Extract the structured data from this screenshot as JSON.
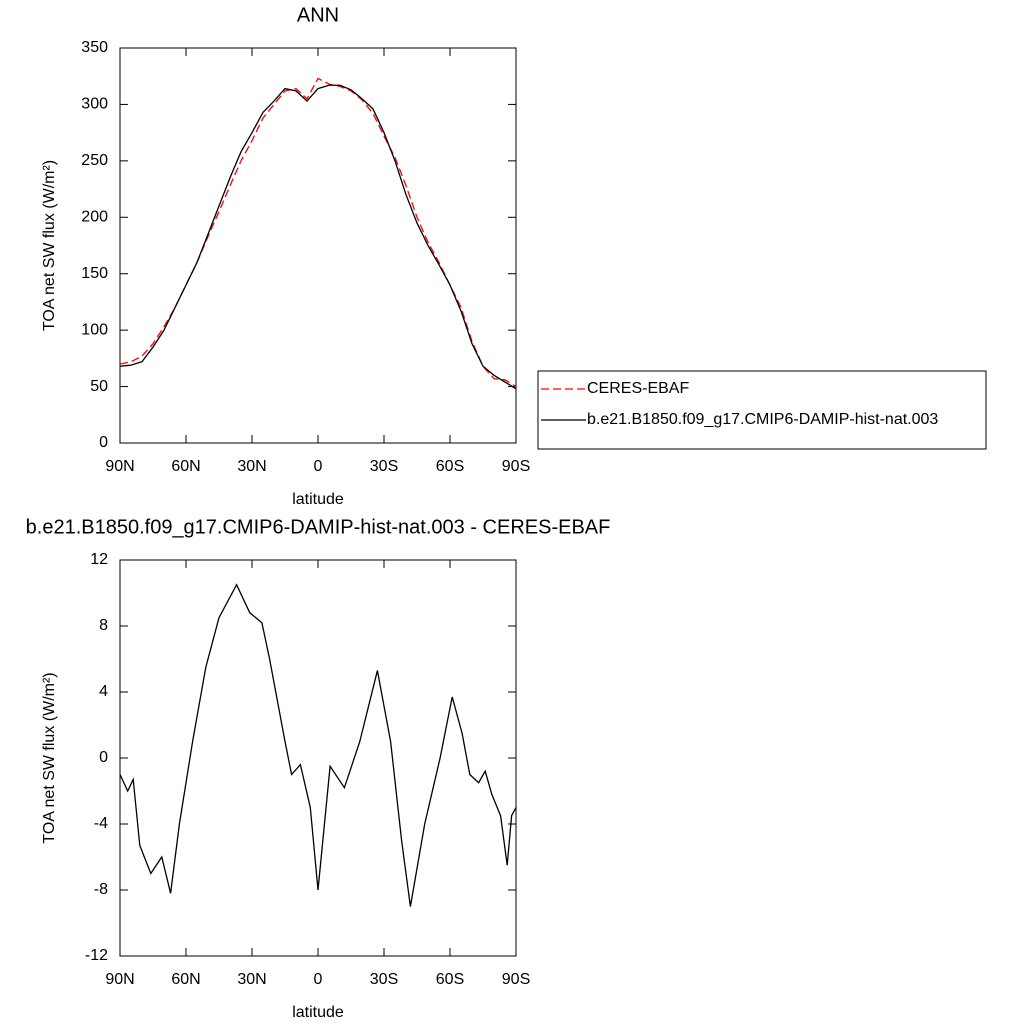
{
  "chart_data": [
    {
      "type": "line",
      "title": "ANN",
      "xlabel": "latitude",
      "ylabel": "TOA net SW flux (W/m²)",
      "xlim": [
        90,
        -90
      ],
      "xticks": [
        {
          "value": 90,
          "label": "90N"
        },
        {
          "value": 60,
          "label": "60N"
        },
        {
          "value": 30,
          "label": "30N"
        },
        0,
        {
          "value": -30,
          "label": "30S"
        },
        {
          "value": -60,
          "label": "60S"
        },
        {
          "value": -90,
          "label": "90S"
        }
      ],
      "ylim": [
        0,
        350
      ],
      "yticks": [
        0,
        50,
        100,
        150,
        200,
        250,
        300,
        350
      ],
      "legend": "right",
      "x": [
        90,
        85,
        80,
        75,
        70,
        65,
        60,
        55,
        50,
        45,
        40,
        35,
        30,
        25,
        20,
        15,
        10,
        5,
        0,
        -5,
        -10,
        -15,
        -20,
        -25,
        -30,
        -35,
        -40,
        -45,
        -50,
        -55,
        -60,
        -65,
        -70,
        -75,
        -80,
        -85,
        -90
      ],
      "series": [
        {
          "name": "CERES-EBAF",
          "color": "#ff0000",
          "line_style": "dashed",
          "values": [
            70,
            72,
            77,
            88,
            103,
            120,
            140,
            160,
            183,
            205,
            228,
            250,
            268,
            288,
            300,
            312,
            314,
            305,
            323,
            318,
            316,
            312,
            304,
            292,
            272,
            253,
            228,
            200,
            178,
            160,
            140,
            120,
            90,
            68,
            57,
            56,
            50
          ]
        },
        {
          "name": "b.e21.B1850.f09_g17.CMIP6-DAMIP-hist-nat.003",
          "color": "#000000",
          "line_style": "solid",
          "values": [
            68,
            69,
            72,
            85,
            100,
            120,
            140,
            160,
            185,
            210,
            235,
            258,
            275,
            293,
            303,
            314,
            312,
            303,
            314,
            317,
            317,
            313,
            305,
            296,
            275,
            250,
            220,
            195,
            175,
            158,
            140,
            117,
            88,
            68,
            60,
            54,
            48
          ]
        }
      ]
    },
    {
      "type": "line",
      "title": "b.e21.B1850.f09_g17.CMIP6-DAMIP-hist-nat.003 - CERES-EBAF",
      "xlabel": "latitude",
      "ylabel": "TOA net SW flux (W/m²)",
      "xlim": [
        90,
        -90
      ],
      "xticks": [
        {
          "value": 90,
          "label": "90N"
        },
        {
          "value": 60,
          "label": "60N"
        },
        {
          "value": 30,
          "label": "30N"
        },
        0,
        {
          "value": -30,
          "label": "30S"
        },
        {
          "value": -60,
          "label": "60S"
        },
        {
          "value": -90,
          "label": "90S"
        }
      ],
      "ylim": [
        -12,
        12
      ],
      "yticks": [
        -12,
        -8,
        -4,
        0,
        4,
        8,
        12
      ],
      "x": [
        90,
        86.5,
        84,
        81,
        76,
        71,
        67,
        63,
        57,
        51,
        45,
        37,
        31,
        25.5,
        22,
        15,
        12,
        8,
        3.5,
        0,
        -5.5,
        -12,
        -19,
        -27,
        -33,
        -38,
        -42,
        -48.5,
        -55.5,
        -61,
        -65.5,
        -69,
        -73,
        -76,
        -79,
        -83,
        -86,
        -88,
        -90
      ],
      "series": [
        {
          "color": "#000000",
          "values": [
            -1,
            -2,
            -1.3,
            -5.3,
            -7,
            -6,
            -8.2,
            -4,
            1,
            5.5,
            8.5,
            10.5,
            8.8,
            8.2,
            6,
            1,
            -1,
            -0.4,
            -3,
            -8,
            -0.5,
            -1.8,
            1,
            5.3,
            1,
            -5,
            -9,
            -4,
            0,
            3.7,
            1.5,
            -1,
            -1.5,
            -0.8,
            -2.2,
            -3.5,
            -6.5,
            -3.5,
            -3
          ]
        }
      ]
    }
  ]
}
